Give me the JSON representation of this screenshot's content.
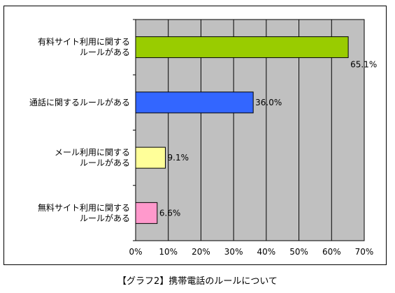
{
  "chart_data": {
    "type": "bar",
    "orientation": "horizontal",
    "categories": [
      [
        "有料サイト利用に関する",
        "ルールがある"
      ],
      [
        "通話に関するルールがある"
      ],
      [
        "メール利用に関する",
        "ルールがある"
      ],
      [
        "無料サイト利用に関する",
        "ルールがある"
      ]
    ],
    "values": [
      65.1,
      36.0,
      9.1,
      6.6
    ],
    "value_labels": [
      "65.1%",
      "36.0%",
      "9.1%",
      "6.6%"
    ],
    "bar_colors": [
      "#99cc00",
      "#3366ff",
      "#ffff99",
      "#ff99cc"
    ],
    "plot_background": "#c0c0c0",
    "grid": true,
    "xlim": [
      0,
      70
    ],
    "x_ticks": [
      "0%",
      "10%",
      "20%",
      "30%",
      "40%",
      "50%",
      "60%",
      "70%"
    ],
    "xlabel": "",
    "ylabel": ""
  },
  "caption": "【グラフ2】携帯電話のルールについて"
}
